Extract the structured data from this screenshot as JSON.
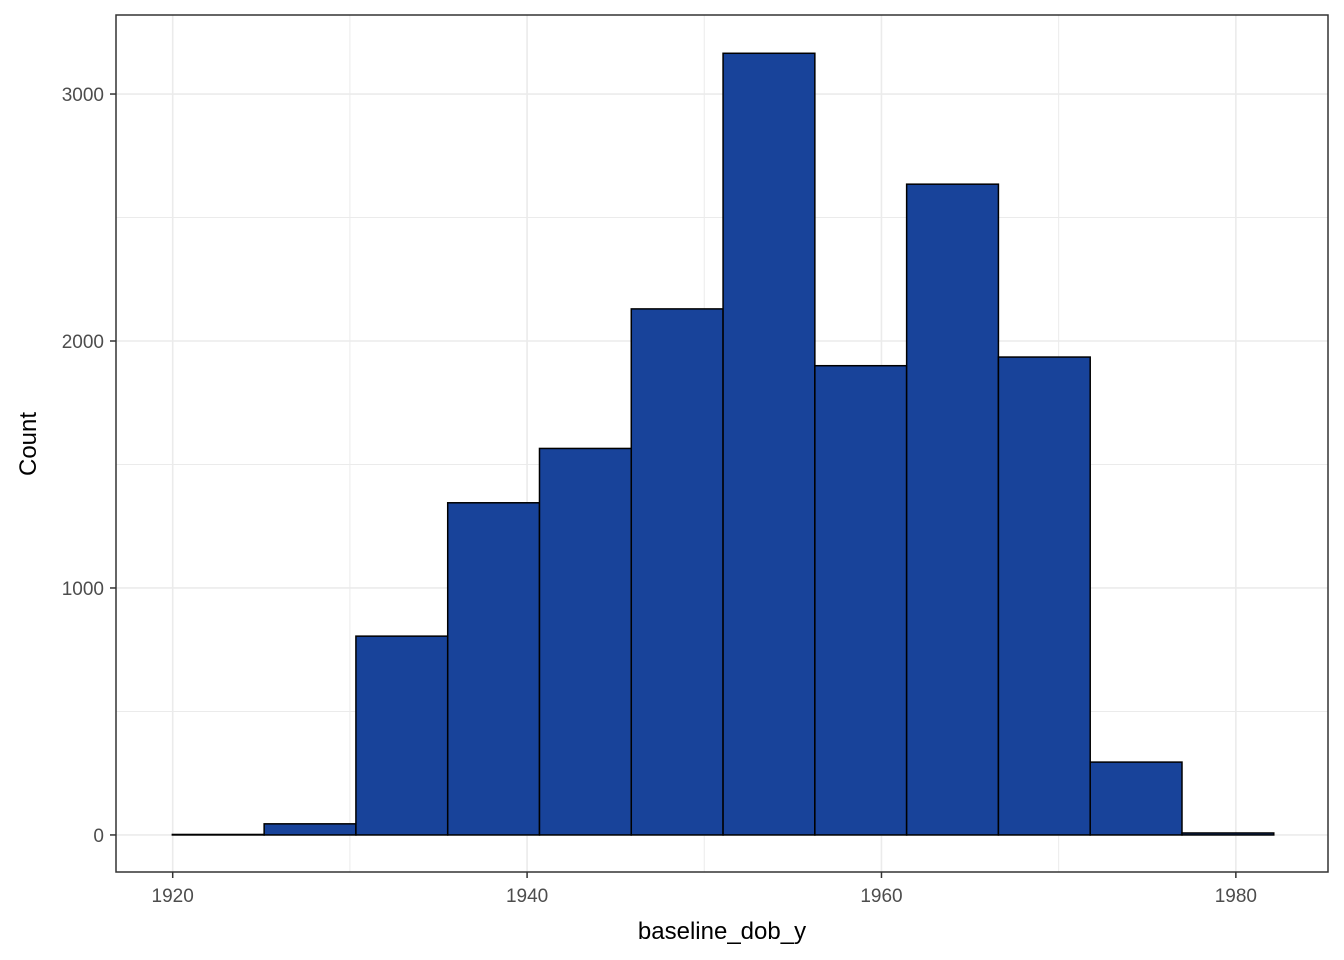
{
  "chart_data": {
    "type": "bar",
    "xlabel": "baseline_dob_y",
    "ylabel": "Count",
    "xlim": [
      1916.8,
      1985.2
    ],
    "ylim": [
      -150,
      3320
    ],
    "x_ticks": [
      1920,
      1940,
      1960,
      1980
    ],
    "x_minor_ticks": [
      1930,
      1950,
      1970
    ],
    "y_ticks": [
      0,
      1000,
      2000,
      3000
    ],
    "y_minor_ticks": [
      500,
      1500,
      2500
    ],
    "grid": true,
    "bin_edges": [
      1919.98,
      1925.16,
      1930.34,
      1935.52,
      1940.7,
      1945.88,
      1951.06,
      1956.24,
      1961.42,
      1966.6,
      1971.78,
      1976.96,
      1982.14
    ],
    "values": [
      2,
      45,
      805,
      1345,
      1565,
      2130,
      3165,
      1900,
      2635,
      1935,
      295,
      8
    ],
    "colors": {
      "fill": "#18439a",
      "stroke": "#000000",
      "grid": "#ebebeb",
      "panel_border": "#333333",
      "tick_text": "#4d4d4d"
    }
  }
}
